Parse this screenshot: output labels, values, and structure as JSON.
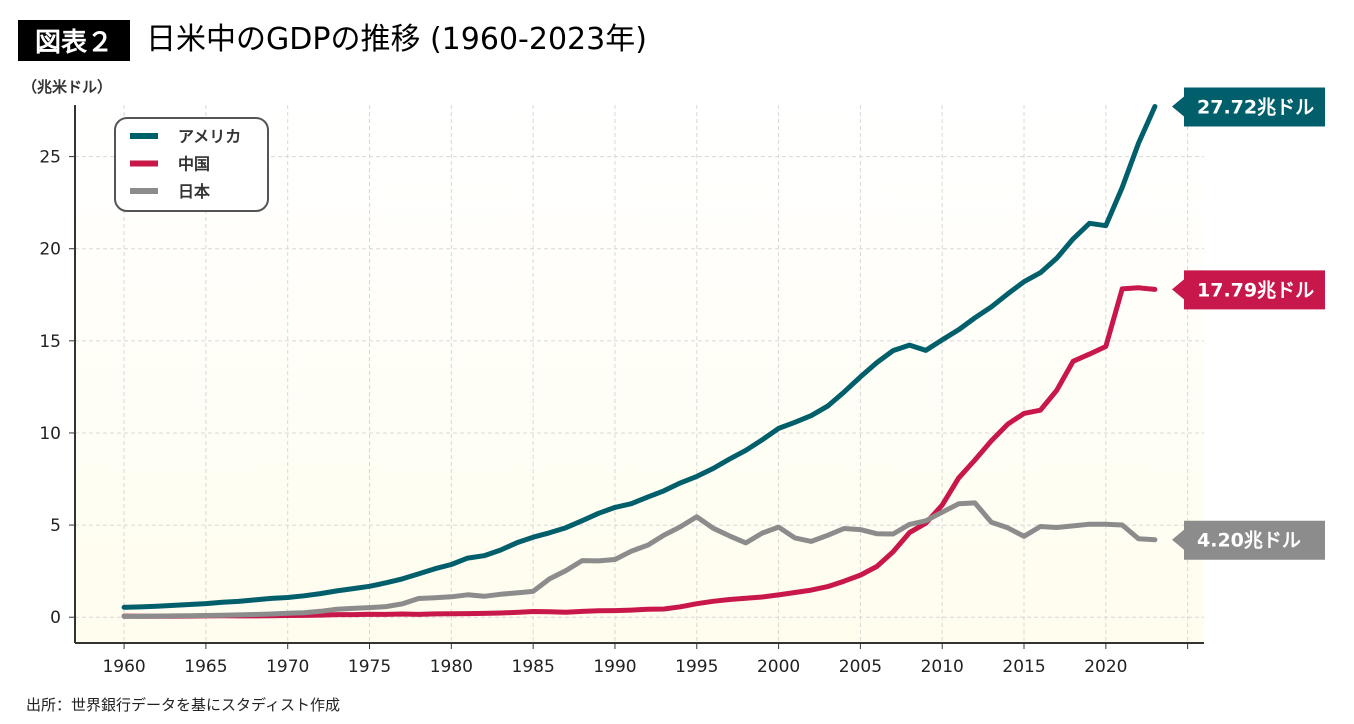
{
  "header": {
    "badge": "図表２",
    "title": "日米中のGDPの推移 (1960-2023年)"
  },
  "footer": {
    "source": "出所：世界銀行データを基にスタディスト作成"
  },
  "chart_data": {
    "type": "line",
    "title": "日米中のGDPの推移 (1960-2023年)",
    "ylabel": "（兆米ドル）",
    "xlabel": "",
    "xlim": [
      1957,
      2026
    ],
    "ylim": [
      -1.4,
      27.8
    ],
    "grid": true,
    "legend_position": "top-left",
    "x_ticks": [
      1960,
      1965,
      1970,
      1975,
      1980,
      1985,
      1990,
      1995,
      2000,
      2005,
      2010,
      2015,
      2020
    ],
    "y_ticks": [
      0,
      5,
      10,
      15,
      20,
      25
    ],
    "x": [
      1960,
      1961,
      1962,
      1963,
      1964,
      1965,
      1966,
      1967,
      1968,
      1969,
      1970,
      1971,
      1972,
      1973,
      1974,
      1975,
      1976,
      1977,
      1978,
      1979,
      1980,
      1981,
      1982,
      1983,
      1984,
      1985,
      1986,
      1987,
      1988,
      1989,
      1990,
      1991,
      1992,
      1993,
      1994,
      1995,
      1996,
      1997,
      1998,
      1999,
      2000,
      2001,
      2002,
      2003,
      2004,
      2005,
      2006,
      2007,
      2008,
      2009,
      2010,
      2011,
      2012,
      2013,
      2014,
      2015,
      2016,
      2017,
      2018,
      2019,
      2020,
      2021,
      2022,
      2023
    ],
    "series": [
      {
        "name": "アメリカ",
        "color": "#005f6b",
        "end_label": "27.72兆ドル",
        "values": [
          0.54,
          0.56,
          0.6,
          0.64,
          0.69,
          0.74,
          0.81,
          0.86,
          0.94,
          1.02,
          1.07,
          1.16,
          1.28,
          1.43,
          1.55,
          1.68,
          1.87,
          2.08,
          2.35,
          2.63,
          2.86,
          3.21,
          3.34,
          3.64,
          4.04,
          4.34,
          4.58,
          4.86,
          5.24,
          5.64,
          5.96,
          6.16,
          6.52,
          6.86,
          7.29,
          7.64,
          8.07,
          8.58,
          9.06,
          9.63,
          10.25,
          10.58,
          10.94,
          11.46,
          12.22,
          13.04,
          13.82,
          14.47,
          14.77,
          14.48,
          15.05,
          15.6,
          16.25,
          16.84,
          17.55,
          18.21,
          18.7,
          19.48,
          20.53,
          21.38,
          21.25,
          23.32,
          25.74,
          27.72
        ]
      },
      {
        "name": "中国",
        "color": "#c8174a",
        "end_label": "17.79兆ドル",
        "values": [
          0.06,
          0.05,
          0.047,
          0.051,
          0.06,
          0.07,
          0.076,
          0.072,
          0.07,
          0.079,
          0.093,
          0.1,
          0.114,
          0.139,
          0.144,
          0.163,
          0.154,
          0.175,
          0.15,
          0.178,
          0.191,
          0.196,
          0.205,
          0.23,
          0.26,
          0.31,
          0.3,
          0.273,
          0.313,
          0.348,
          0.361,
          0.383,
          0.427,
          0.445,
          0.564,
          0.734,
          0.864,
          0.962,
          1.029,
          1.094,
          1.211,
          1.339,
          1.471,
          1.66,
          1.955,
          2.286,
          2.752,
          3.55,
          4.594,
          5.102,
          6.087,
          7.552,
          8.532,
          9.57,
          10.475,
          11.062,
          11.233,
          12.31,
          13.89,
          14.28,
          14.69,
          17.82,
          17.88,
          17.79
        ]
      },
      {
        "name": "日本",
        "color": "#8c8c8c",
        "end_label": "4.20兆ドル",
        "values": [
          0.044,
          0.054,
          0.061,
          0.07,
          0.082,
          0.091,
          0.106,
          0.124,
          0.147,
          0.172,
          0.213,
          0.24,
          0.318,
          0.432,
          0.479,
          0.521,
          0.576,
          0.721,
          1.014,
          1.055,
          1.105,
          1.218,
          1.135,
          1.243,
          1.318,
          1.399,
          2.079,
          2.532,
          3.072,
          3.054,
          3.133,
          3.584,
          3.909,
          4.454,
          4.907,
          5.449,
          4.833,
          4.415,
          4.033,
          4.563,
          4.888,
          4.304,
          4.115,
          4.446,
          4.815,
          4.755,
          4.53,
          4.515,
          5.038,
          5.231,
          5.7,
          6.157,
          6.203,
          5.156,
          4.85,
          4.389,
          4.923,
          4.867,
          4.955,
          5.048,
          5.04,
          5.006,
          4.256,
          4.204
        ]
      }
    ]
  }
}
